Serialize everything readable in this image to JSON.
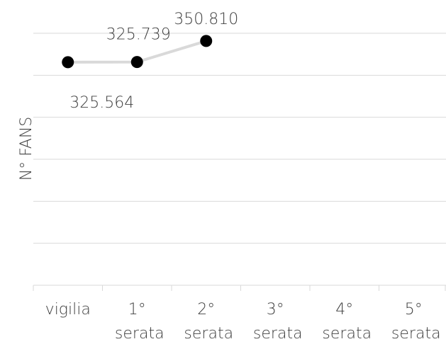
{
  "chart_data": {
    "type": "line",
    "y_label": "N° FANS",
    "categories": [
      "vigilia",
      "1° serata",
      "2° serata",
      "3° serata",
      "4° serata",
      "5° serata"
    ],
    "series": [
      {
        "color": "#d9d9d9",
        "marker_color": "#000000",
        "values": [
          325564,
          325739,
          350810,
          null,
          null,
          null
        ],
        "value_labels": [
          "325.564",
          "325.739",
          "350.810",
          null,
          null,
          null
        ]
      }
    ],
    "ylim": [
      60000,
      360000
    ],
    "yticks": [
      60000,
      110000,
      160000,
      210000,
      260000,
      310000,
      360000
    ],
    "grid": true
  }
}
